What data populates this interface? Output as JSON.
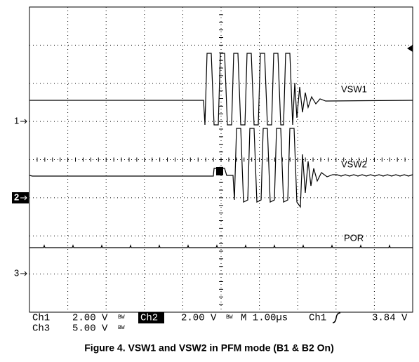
{
  "markers": [
    "1",
    "2",
    "3"
  ],
  "trace_labels": [
    "VSW1",
    "VSW2",
    "POR"
  ],
  "status": {
    "row1": {
      "ch1": "Ch1",
      "ch1_scale": "2.00 V",
      "bw1": "BW",
      "ch2": "Ch2",
      "ch2_scale": "2.00 V",
      "bw2": "BW",
      "timebase": "M 1.00µs",
      "trigger_source": "Ch1",
      "trigger_level": "3.84 V"
    },
    "row2": {
      "ch3": "Ch3",
      "ch3_scale": "5.00 V",
      "bw3": "BW"
    }
  },
  "caption": "Figure 4. VSW1 and VSW2 in PFM mode (B1 & B2 On)"
}
